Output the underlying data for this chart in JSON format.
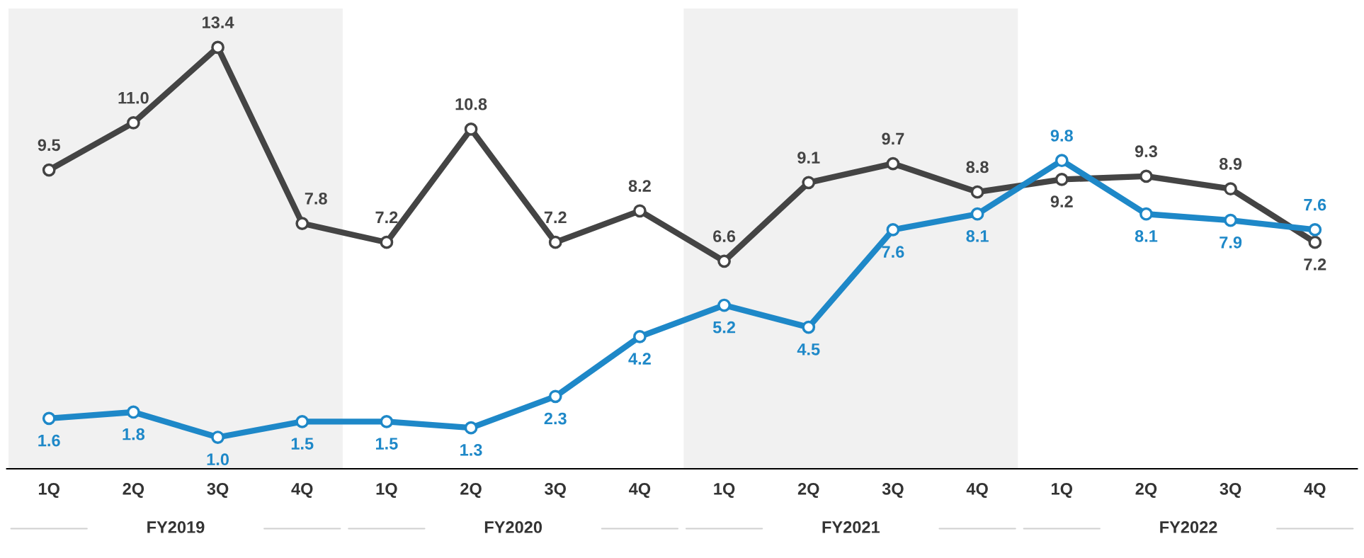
{
  "chart_data": {
    "type": "line",
    "categories": [
      "1Q",
      "2Q",
      "3Q",
      "4Q",
      "1Q",
      "2Q",
      "3Q",
      "4Q",
      "1Q",
      "2Q",
      "3Q",
      "4Q",
      "1Q",
      "2Q",
      "3Q",
      "4Q"
    ],
    "series": [
      {
        "color": "#444444",
        "values": [
          9.5,
          11.0,
          13.4,
          7.8,
          7.2,
          10.8,
          7.2,
          8.2,
          6.6,
          9.1,
          9.7,
          8.8,
          9.2,
          9.3,
          8.9,
          7.2
        ],
        "value_labels": [
          "9.5",
          "11.0",
          "13.4",
          "7.8",
          "7.2",
          "10.8",
          "7.2",
          "8.2",
          "6.6",
          "9.1",
          "9.7",
          "8.8",
          "9.2",
          "9.3",
          "8.9",
          "7.2"
        ]
      },
      {
        "color": "#1e88c8",
        "values": [
          1.6,
          1.8,
          1.0,
          1.5,
          1.5,
          1.3,
          2.3,
          4.2,
          5.2,
          4.5,
          7.6,
          8.1,
          9.8,
          8.1,
          7.9,
          7.6
        ],
        "value_labels": [
          "1.6",
          "1.8",
          "1.0",
          "1.5",
          "1.5",
          "1.3",
          "2.3",
          "4.2",
          "5.2",
          "4.5",
          "7.6",
          "8.1",
          "9.8",
          "8.1",
          "7.9",
          "7.6"
        ]
      }
    ],
    "data_labels": true,
    "marker": "circle",
    "line_style": "solid",
    "tick_labels": "x",
    "annotations": [
      "FY2019",
      "FY2020",
      "FY2021",
      "FY2022"
    ]
  }
}
